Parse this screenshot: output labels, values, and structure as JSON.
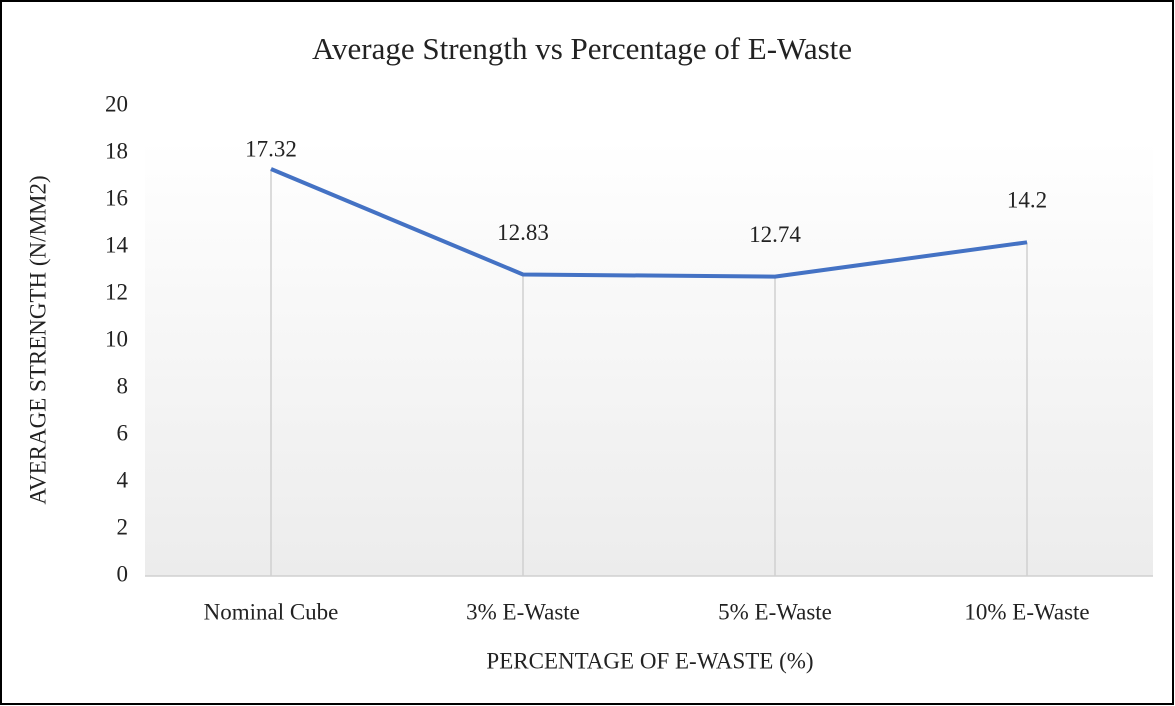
{
  "chart_data": {
    "type": "line",
    "title": "Average Strength vs Percentage of E-Waste",
    "x_label": "PERCENTAGE OF E-WASTE (%)",
    "y_label": "AVERAGE STRENGTH (N/MM2)",
    "categories": [
      "Nominal Cube",
      "3% E-Waste",
      "5% E-Waste",
      "10% E-Waste"
    ],
    "values": [
      17.32,
      12.83,
      12.74,
      14.2
    ],
    "color": "#4472c4",
    "ylim": [
      0,
      20
    ],
    "yticks": [
      0,
      2,
      4,
      6,
      8,
      10,
      12,
      14,
      16,
      18,
      20
    ],
    "grid": false
  }
}
